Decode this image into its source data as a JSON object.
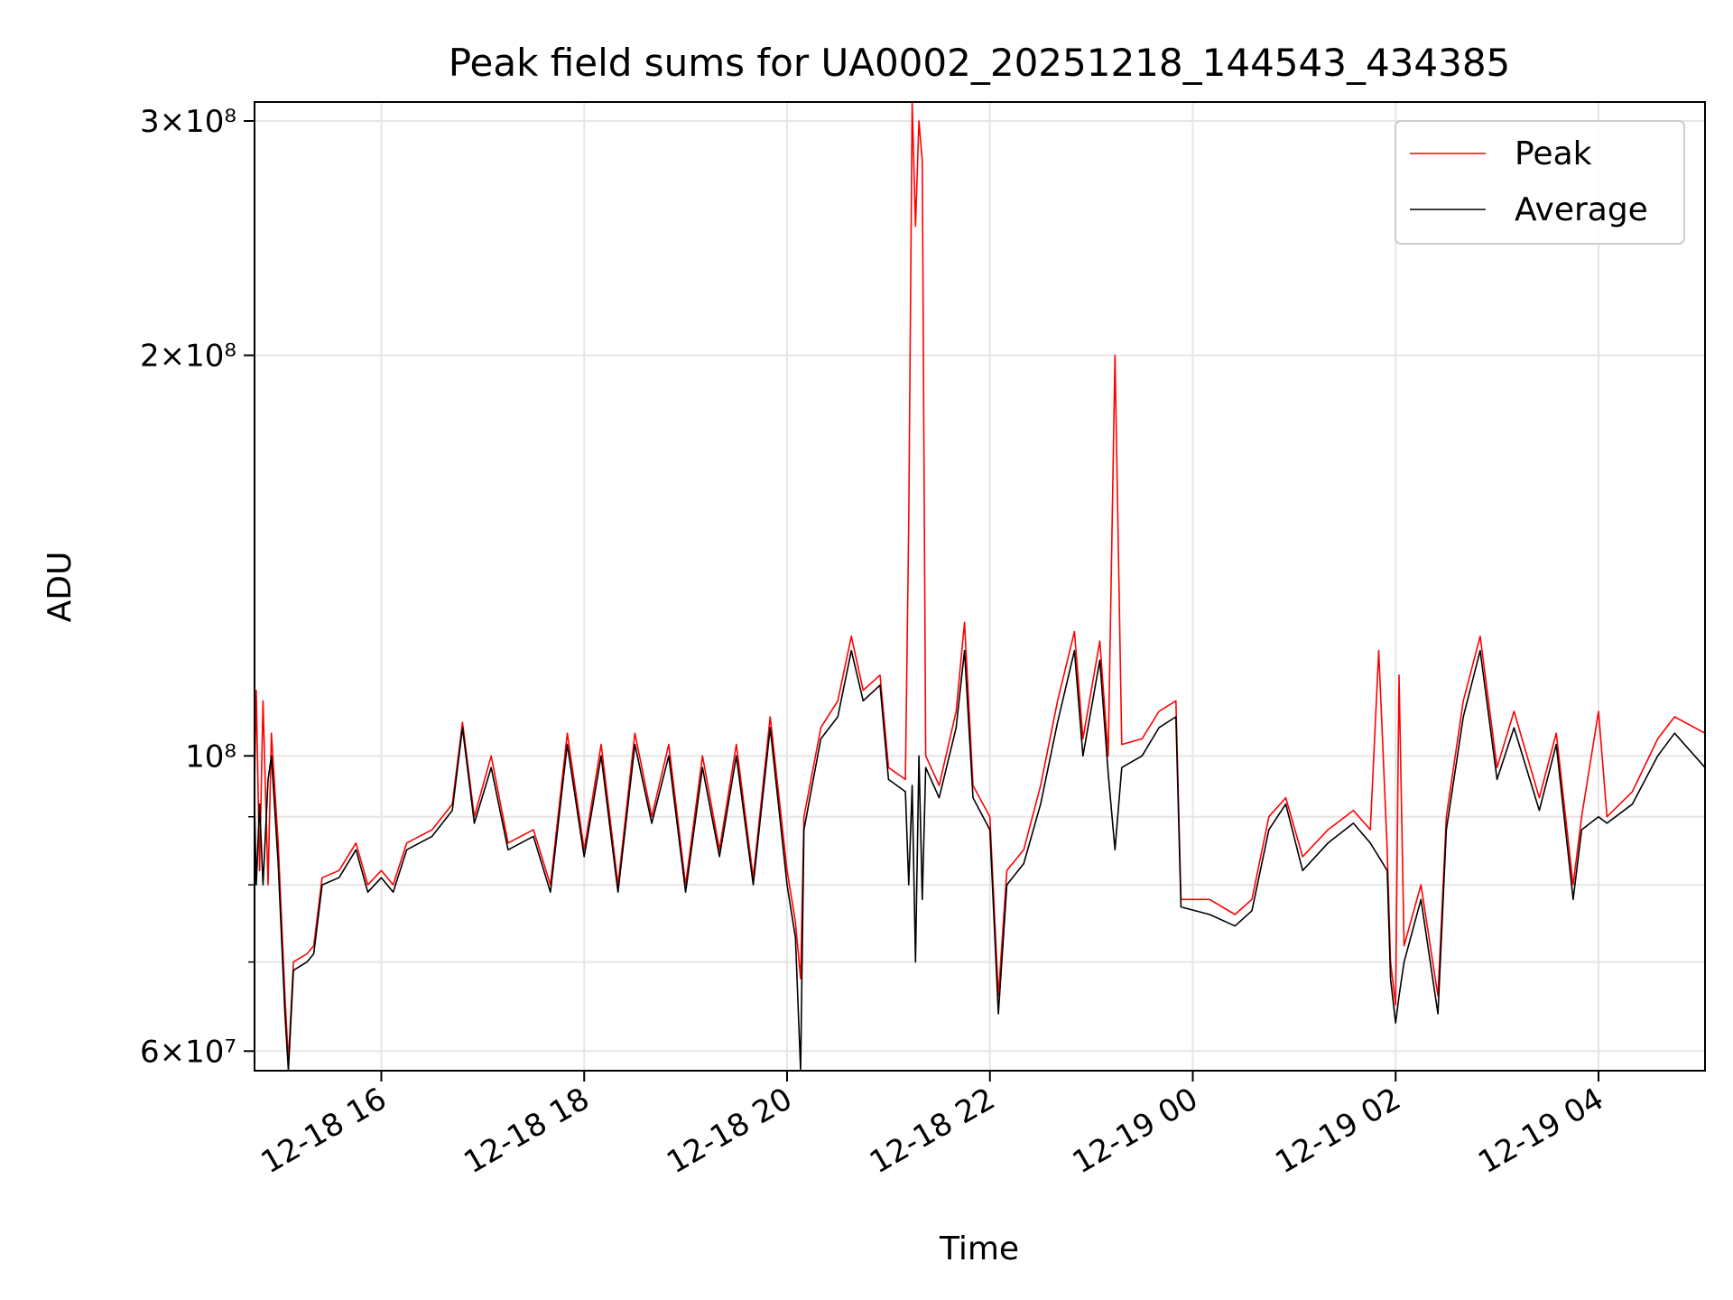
{
  "chart_data": {
    "type": "line",
    "title": "Peak field sums for UA0002_20251218_144543_434385",
    "xlabel": "Time",
    "ylabel": "ADU",
    "y_scale": "log",
    "grid": true,
    "legend_position": "top-right",
    "xlim": [
      "2025-12-18 14:45",
      "2025-12-19 05:03"
    ],
    "ylim": [
      58000000,
      310000000
    ],
    "x_ticks": [
      {
        "value": "2025-12-18 16:00",
        "label": "12-18 16"
      },
      {
        "value": "2025-12-18 18:00",
        "label": "12-18 18"
      },
      {
        "value": "2025-12-18 20:00",
        "label": "12-18 20"
      },
      {
        "value": "2025-12-18 22:00",
        "label": "12-18 22"
      },
      {
        "value": "2025-12-19 00:00",
        "label": "12-19 00"
      },
      {
        "value": "2025-12-19 02:00",
        "label": "12-19 02"
      },
      {
        "value": "2025-12-19 04:00",
        "label": "12-19 04"
      }
    ],
    "y_ticks": [
      {
        "value": 60000000,
        "label": "6×10⁷"
      },
      {
        "value": 100000000,
        "label": "10⁸"
      },
      {
        "value": 200000000,
        "label": "2×10⁸"
      },
      {
        "value": 300000000,
        "label": "3×10⁸"
      }
    ],
    "y_minor_ticks": [
      70000000,
      80000000,
      90000000
    ],
    "series": [
      {
        "name": "Peak",
        "color": "#ff0000",
        "points": [
          [
            "2025-12-18 14:45",
            95000000
          ],
          [
            "2025-12-18 14:46",
            112000000
          ],
          [
            "2025-12-18 14:48",
            82000000
          ],
          [
            "2025-12-18 14:50",
            110000000
          ],
          [
            "2025-12-18 14:53",
            80000000
          ],
          [
            "2025-12-18 14:55",
            104000000
          ],
          [
            "2025-12-18 14:59",
            86000000
          ],
          [
            "2025-12-18 15:03",
            66000000
          ],
          [
            "2025-12-18 15:05",
            59000000
          ],
          [
            "2025-12-18 15:08",
            70000000
          ],
          [
            "2025-12-18 15:16",
            71000000
          ],
          [
            "2025-12-18 15:20",
            72000000
          ],
          [
            "2025-12-18 15:25",
            81000000
          ],
          [
            "2025-12-18 15:35",
            82000000
          ],
          [
            "2025-12-18 15:45",
            86000000
          ],
          [
            "2025-12-18 15:52",
            80000000
          ],
          [
            "2025-12-18 16:00",
            82000000
          ],
          [
            "2025-12-18 16:07",
            80000000
          ],
          [
            "2025-12-18 16:15",
            86000000
          ],
          [
            "2025-12-18 16:30",
            88000000
          ],
          [
            "2025-12-18 16:42",
            92000000
          ],
          [
            "2025-12-18 16:48",
            106000000
          ],
          [
            "2025-12-18 16:55",
            90000000
          ],
          [
            "2025-12-18 17:05",
            100000000
          ],
          [
            "2025-12-18 17:15",
            86000000
          ],
          [
            "2025-12-18 17:30",
            88000000
          ],
          [
            "2025-12-18 17:40",
            80000000
          ],
          [
            "2025-12-18 17:50",
            104000000
          ],
          [
            "2025-12-18 18:00",
            85000000
          ],
          [
            "2025-12-18 18:10",
            102000000
          ],
          [
            "2025-12-18 18:20",
            80000000
          ],
          [
            "2025-12-18 18:30",
            104000000
          ],
          [
            "2025-12-18 18:40",
            90000000
          ],
          [
            "2025-12-18 18:50",
            102000000
          ],
          [
            "2025-12-18 19:00",
            80000000
          ],
          [
            "2025-12-18 19:10",
            100000000
          ],
          [
            "2025-12-18 19:20",
            85000000
          ],
          [
            "2025-12-18 19:30",
            102000000
          ],
          [
            "2025-12-18 19:40",
            81000000
          ],
          [
            "2025-12-18 19:50",
            107000000
          ],
          [
            "2025-12-18 20:00",
            82000000
          ],
          [
            "2025-12-18 20:05",
            75000000
          ],
          [
            "2025-12-18 20:08",
            68000000
          ],
          [
            "2025-12-18 20:10",
            90000000
          ],
          [
            "2025-12-18 20:20",
            105000000
          ],
          [
            "2025-12-18 20:30",
            110000000
          ],
          [
            "2025-12-18 20:38",
            123000000
          ],
          [
            "2025-12-18 20:45",
            112000000
          ],
          [
            "2025-12-18 20:55",
            115000000
          ],
          [
            "2025-12-18 21:00",
            98000000
          ],
          [
            "2025-12-18 21:10",
            96000000
          ],
          [
            "2025-12-18 21:12",
            150000000
          ],
          [
            "2025-12-18 21:14",
            310000000
          ],
          [
            "2025-12-18 21:16",
            250000000
          ],
          [
            "2025-12-18 21:18",
            300000000
          ],
          [
            "2025-12-18 21:20",
            280000000
          ],
          [
            "2025-12-18 21:22",
            100000000
          ],
          [
            "2025-12-18 21:30",
            95000000
          ],
          [
            "2025-12-18 21:40",
            108000000
          ],
          [
            "2025-12-18 21:45",
            126000000
          ],
          [
            "2025-12-18 21:50",
            95000000
          ],
          [
            "2025-12-18 22:00",
            90000000
          ],
          [
            "2025-12-18 22:05",
            66000000
          ],
          [
            "2025-12-18 22:10",
            82000000
          ],
          [
            "2025-12-18 22:20",
            85000000
          ],
          [
            "2025-12-18 22:30",
            95000000
          ],
          [
            "2025-12-18 22:40",
            110000000
          ],
          [
            "2025-12-18 22:50",
            124000000
          ],
          [
            "2025-12-18 22:55",
            103000000
          ],
          [
            "2025-12-18 23:05",
            122000000
          ],
          [
            "2025-12-18 23:10",
            100000000
          ],
          [
            "2025-12-18 23:14",
            200000000
          ],
          [
            "2025-12-18 23:18",
            102000000
          ],
          [
            "2025-12-18 23:30",
            103000000
          ],
          [
            "2025-12-18 23:40",
            108000000
          ],
          [
            "2025-12-18 23:50",
            110000000
          ],
          [
            "2025-12-18 23:53",
            78000000
          ],
          [
            "2025-12-19 00:10",
            78000000
          ],
          [
            "2025-12-19 00:25",
            76000000
          ],
          [
            "2025-12-19 00:35",
            78000000
          ],
          [
            "2025-12-19 00:45",
            90000000
          ],
          [
            "2025-12-19 00:55",
            93000000
          ],
          [
            "2025-12-19 01:05",
            84000000
          ],
          [
            "2025-12-19 01:20",
            88000000
          ],
          [
            "2025-12-19 01:35",
            91000000
          ],
          [
            "2025-12-19 01:45",
            88000000
          ],
          [
            "2025-12-19 01:50",
            120000000
          ],
          [
            "2025-12-19 01:55",
            85000000
          ],
          [
            "2025-12-19 01:57",
            70000000
          ],
          [
            "2025-12-19 02:00",
            65000000
          ],
          [
            "2025-12-19 02:02",
            115000000
          ],
          [
            "2025-12-19 02:05",
            72000000
          ],
          [
            "2025-12-19 02:15",
            80000000
          ],
          [
            "2025-12-19 02:25",
            66000000
          ],
          [
            "2025-12-19 02:30",
            90000000
          ],
          [
            "2025-12-19 02:40",
            110000000
          ],
          [
            "2025-12-19 02:50",
            123000000
          ],
          [
            "2025-12-19 03:00",
            98000000
          ],
          [
            "2025-12-19 03:10",
            108000000
          ],
          [
            "2025-12-19 03:25",
            93000000
          ],
          [
            "2025-12-19 03:35",
            104000000
          ],
          [
            "2025-12-19 03:45",
            80000000
          ],
          [
            "2025-12-19 03:50",
            90000000
          ],
          [
            "2025-12-19 04:00",
            108000000
          ],
          [
            "2025-12-19 04:05",
            90000000
          ],
          [
            "2025-12-19 04:20",
            94000000
          ],
          [
            "2025-12-19 04:35",
            103000000
          ],
          [
            "2025-12-19 04:45",
            107000000
          ],
          [
            "2025-12-19 05:03",
            104000000
          ]
        ]
      },
      {
        "name": "Average",
        "color": "#000000",
        "points": [
          [
            "2025-12-18 14:45",
            92000000
          ],
          [
            "2025-12-18 14:46",
            80000000
          ],
          [
            "2025-12-18 14:48",
            92000000
          ],
          [
            "2025-12-18 14:50",
            80000000
          ],
          [
            "2025-12-18 14:53",
            96000000
          ],
          [
            "2025-12-18 14:55",
            100000000
          ],
          [
            "2025-12-18 14:59",
            83000000
          ],
          [
            "2025-12-18 15:03",
            64000000
          ],
          [
            "2025-12-18 15:05",
            58000000
          ],
          [
            "2025-12-18 15:08",
            69000000
          ],
          [
            "2025-12-18 15:16",
            70000000
          ],
          [
            "2025-12-18 15:20",
            71000000
          ],
          [
            "2025-12-18 15:25",
            80000000
          ],
          [
            "2025-12-18 15:35",
            81000000
          ],
          [
            "2025-12-18 15:45",
            85000000
          ],
          [
            "2025-12-18 15:52",
            79000000
          ],
          [
            "2025-12-18 16:00",
            81000000
          ],
          [
            "2025-12-18 16:07",
            79000000
          ],
          [
            "2025-12-18 16:15",
            85000000
          ],
          [
            "2025-12-18 16:30",
            87000000
          ],
          [
            "2025-12-18 16:42",
            91000000
          ],
          [
            "2025-12-18 16:48",
            105000000
          ],
          [
            "2025-12-18 16:55",
            89000000
          ],
          [
            "2025-12-18 17:05",
            98000000
          ],
          [
            "2025-12-18 17:15",
            85000000
          ],
          [
            "2025-12-18 17:30",
            87000000
          ],
          [
            "2025-12-18 17:40",
            79000000
          ],
          [
            "2025-12-18 17:50",
            102000000
          ],
          [
            "2025-12-18 18:00",
            84000000
          ],
          [
            "2025-12-18 18:10",
            100000000
          ],
          [
            "2025-12-18 18:20",
            79000000
          ],
          [
            "2025-12-18 18:30",
            102000000
          ],
          [
            "2025-12-18 18:40",
            89000000
          ],
          [
            "2025-12-18 18:50",
            100000000
          ],
          [
            "2025-12-18 19:00",
            79000000
          ],
          [
            "2025-12-18 19:10",
            98000000
          ],
          [
            "2025-12-18 19:20",
            84000000
          ],
          [
            "2025-12-18 19:30",
            100000000
          ],
          [
            "2025-12-18 19:40",
            80000000
          ],
          [
            "2025-12-18 19:50",
            105000000
          ],
          [
            "2025-12-18 20:00",
            80000000
          ],
          [
            "2025-12-18 20:05",
            73000000
          ],
          [
            "2025-12-18 20:08",
            58000000
          ],
          [
            "2025-12-18 20:10",
            88000000
          ],
          [
            "2025-12-18 20:20",
            103000000
          ],
          [
            "2025-12-18 20:30",
            107000000
          ],
          [
            "2025-12-18 20:38",
            120000000
          ],
          [
            "2025-12-18 20:45",
            110000000
          ],
          [
            "2025-12-18 20:55",
            113000000
          ],
          [
            "2025-12-18 21:00",
            96000000
          ],
          [
            "2025-12-18 21:10",
            94000000
          ],
          [
            "2025-12-18 21:12",
            80000000
          ],
          [
            "2025-12-18 21:14",
            95000000
          ],
          [
            "2025-12-18 21:16",
            70000000
          ],
          [
            "2025-12-18 21:18",
            100000000
          ],
          [
            "2025-12-18 21:20",
            78000000
          ],
          [
            "2025-12-18 21:22",
            98000000
          ],
          [
            "2025-12-18 21:30",
            93000000
          ],
          [
            "2025-12-18 21:40",
            105000000
          ],
          [
            "2025-12-18 21:45",
            120000000
          ],
          [
            "2025-12-18 21:50",
            93000000
          ],
          [
            "2025-12-18 22:00",
            88000000
          ],
          [
            "2025-12-18 22:05",
            64000000
          ],
          [
            "2025-12-18 22:10",
            80000000
          ],
          [
            "2025-12-18 22:20",
            83000000
          ],
          [
            "2025-12-18 22:30",
            92000000
          ],
          [
            "2025-12-18 22:40",
            106000000
          ],
          [
            "2025-12-18 22:50",
            120000000
          ],
          [
            "2025-12-18 22:55",
            100000000
          ],
          [
            "2025-12-18 23:05",
            118000000
          ],
          [
            "2025-12-18 23:10",
            97000000
          ],
          [
            "2025-12-18 23:14",
            85000000
          ],
          [
            "2025-12-18 23:18",
            98000000
          ],
          [
            "2025-12-18 23:30",
            100000000
          ],
          [
            "2025-12-18 23:40",
            105000000
          ],
          [
            "2025-12-18 23:50",
            107000000
          ],
          [
            "2025-12-18 23:53",
            77000000
          ],
          [
            "2025-12-19 00:10",
            76000000
          ],
          [
            "2025-12-19 00:25",
            74500000
          ],
          [
            "2025-12-19 00:35",
            76500000
          ],
          [
            "2025-12-19 00:45",
            88000000
          ],
          [
            "2025-12-19 00:55",
            92000000
          ],
          [
            "2025-12-19 01:05",
            82000000
          ],
          [
            "2025-12-19 01:20",
            86000000
          ],
          [
            "2025-12-19 01:35",
            89000000
          ],
          [
            "2025-12-19 01:45",
            86000000
          ],
          [
            "2025-12-19 01:50",
            84000000
          ],
          [
            "2025-12-19 01:55",
            82000000
          ],
          [
            "2025-12-19 01:57",
            68000000
          ],
          [
            "2025-12-19 02:00",
            63000000
          ],
          [
            "2025-12-19 02:02",
            66000000
          ],
          [
            "2025-12-19 02:05",
            70000000
          ],
          [
            "2025-12-19 02:15",
            78000000
          ],
          [
            "2025-12-19 02:25",
            64000000
          ],
          [
            "2025-12-19 02:30",
            88000000
          ],
          [
            "2025-12-19 02:40",
            107000000
          ],
          [
            "2025-12-19 02:50",
            120000000
          ],
          [
            "2025-12-19 03:00",
            96000000
          ],
          [
            "2025-12-19 03:10",
            105000000
          ],
          [
            "2025-12-19 03:25",
            91000000
          ],
          [
            "2025-12-19 03:35",
            102000000
          ],
          [
            "2025-12-19 03:45",
            78000000
          ],
          [
            "2025-12-19 03:50",
            88000000
          ],
          [
            "2025-12-19 04:00",
            90000000
          ],
          [
            "2025-12-19 04:05",
            89000000
          ],
          [
            "2025-12-19 04:20",
            92000000
          ],
          [
            "2025-12-19 04:35",
            100000000
          ],
          [
            "2025-12-19 04:45",
            104000000
          ],
          [
            "2025-12-19 05:03",
            98000000
          ]
        ]
      }
    ],
    "legend": [
      {
        "name": "Peak",
        "color": "#ff0000"
      },
      {
        "name": "Average",
        "color": "#000000"
      }
    ]
  }
}
